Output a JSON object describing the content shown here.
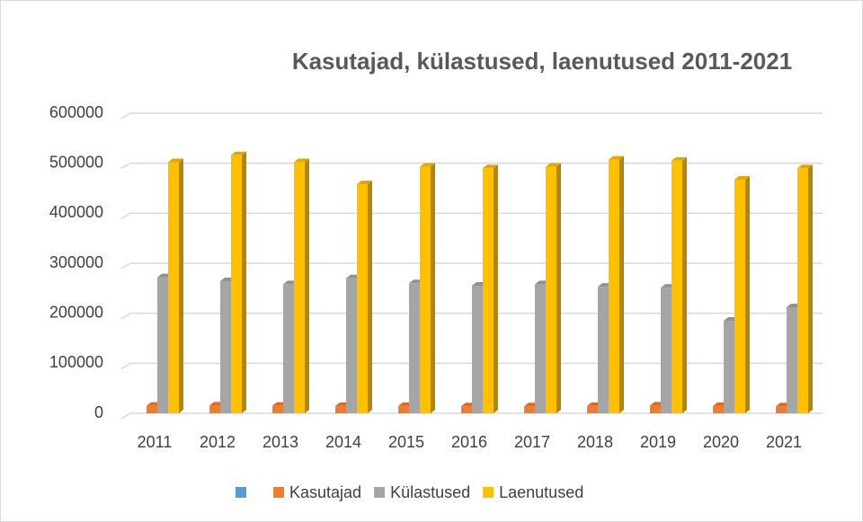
{
  "chart_data": {
    "type": "bar3d",
    "title": "Kasutajad, külastused, laenutused 2011-2021",
    "categories": [
      "2011",
      "2012",
      "2013",
      "2014",
      "2015",
      "2016",
      "2017",
      "2018",
      "2019",
      "2020",
      "2021"
    ],
    "series": [
      {
        "name": null,
        "color": "#5b9bd5",
        "values": [
          null,
          null,
          null,
          null,
          null,
          null,
          null,
          null,
          null,
          null,
          null
        ]
      },
      {
        "name": "Kasutajad",
        "color": "#ed7d31",
        "values": [
          15000,
          15500,
          15000,
          14500,
          14500,
          14000,
          14000,
          14500,
          15500,
          14500,
          14000
        ]
      },
      {
        "name": "Külastused",
        "color": "#a5a5a5",
        "values": [
          272000,
          264000,
          258000,
          270000,
          260000,
          255000,
          258000,
          253000,
          251000,
          185000,
          212000
        ]
      },
      {
        "name": "Laenutused",
        "color": "#ffc000",
        "values": [
          502000,
          516000,
          502000,
          458000,
          493000,
          490000,
          493000,
          507000,
          505000,
          467000,
          490000
        ]
      }
    ],
    "ylim": [
      0,
      600000
    ],
    "yticks": [
      0,
      100000,
      200000,
      300000,
      400000,
      500000,
      600000
    ],
    "grid": true
  }
}
